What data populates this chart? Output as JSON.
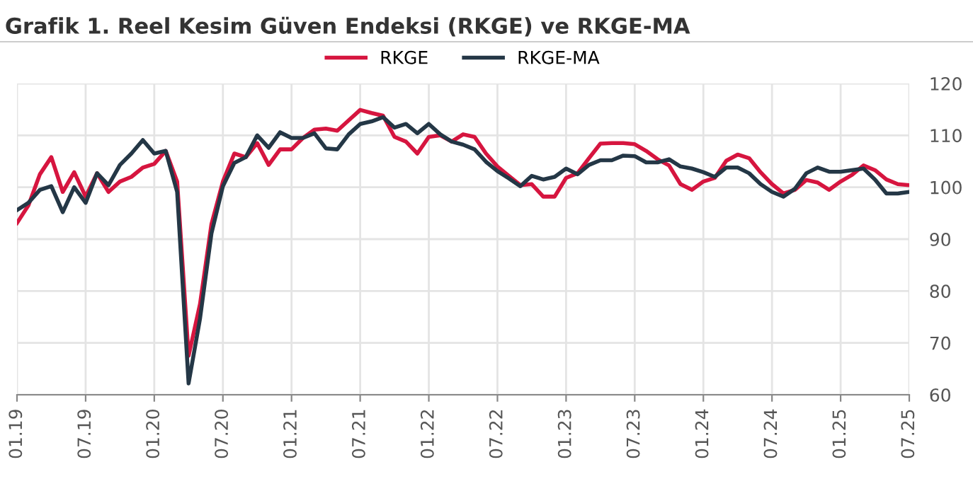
{
  "chart_data": {
    "type": "line",
    "title": "Grafik 1. Reel Kesim Güven Endeksi (RKGE) ve RKGE-MA",
    "categories": [
      "01.19",
      null,
      null,
      null,
      null,
      null,
      "07.19",
      null,
      null,
      null,
      null,
      null,
      "01.20",
      null,
      null,
      null,
      null,
      null,
      "07.20",
      null,
      null,
      null,
      null,
      null,
      "01.21",
      null,
      null,
      null,
      null,
      null,
      "07.21",
      null,
      null,
      null,
      null,
      null,
      "01.22",
      null,
      null,
      null,
      null,
      null,
      "07.22",
      null,
      null,
      null,
      null,
      null,
      "01.23",
      null,
      null,
      null,
      null,
      null,
      "07.23",
      null,
      null,
      null,
      null,
      null,
      "01.24",
      null,
      null,
      null,
      null,
      null,
      "07.24",
      null,
      null,
      null,
      null,
      null,
      "01.25",
      null,
      null,
      null,
      null,
      null,
      "07.25"
    ],
    "series": [
      {
        "name": "RKGE",
        "color": "#d6153f",
        "values": [
          93.1,
          96.5,
          102.5,
          105.8,
          99.1,
          102.9,
          98.2,
          102.7,
          99.1,
          101.1,
          102,
          103.8,
          104.5,
          107,
          101.1,
          67.5,
          77.5,
          92.9,
          101.1,
          106.5,
          105.8,
          108.5,
          104.3,
          107.3,
          107.3,
          109.5,
          111.1,
          111.3,
          110.9,
          112.9,
          114.9,
          114.3,
          113.8,
          109.7,
          108.8,
          106.5,
          109.7,
          110,
          108.8,
          110.2,
          109.7,
          106.5,
          104,
          102.2,
          100.4,
          100.6,
          98.2,
          98.2,
          101.8,
          102.7,
          105.6,
          108.4,
          108.5,
          108.5,
          108.3,
          107,
          105.4,
          104.2,
          100.6,
          99.5,
          101.1,
          101.8,
          105.1,
          106.3,
          105.6,
          102.9,
          100.6,
          98.8,
          99.5,
          101.4,
          100.9,
          99.5,
          101.1,
          102.4,
          104.2,
          103.3,
          101.5,
          100.6,
          100.4
        ]
      },
      {
        "name": "RKGE-MA",
        "color": "#243746",
        "values": [
          95.6,
          97,
          99.5,
          100.2,
          95.2,
          100,
          97,
          102.7,
          100.4,
          104.3,
          106.5,
          109.1,
          106.5,
          107,
          99.1,
          62.2,
          74.7,
          91.1,
          100.2,
          104.7,
          105.8,
          110,
          107.6,
          110.6,
          109.5,
          109.5,
          110.4,
          107.5,
          107.3,
          110.2,
          112.2,
          112.7,
          113.5,
          111.5,
          112.2,
          110.4,
          112.2,
          110.2,
          108.8,
          108.2,
          107.3,
          104.9,
          103.1,
          101.7,
          100.2,
          102.2,
          101.5,
          102,
          103.6,
          102.5,
          104.3,
          105.2,
          105.2,
          106.1,
          106,
          104.8,
          104.8,
          105.4,
          104,
          103.6,
          102.9,
          102,
          103.8,
          103.8,
          102.7,
          100.6,
          99.1,
          98.2,
          99.7,
          102.7,
          103.8,
          103,
          103,
          103.3,
          103.6,
          101.5,
          98.8,
          98.8,
          99.1
        ]
      }
    ],
    "ylim": [
      60,
      120
    ],
    "yticks": [
      60,
      70,
      80,
      90,
      100,
      110,
      120
    ],
    "grid": true,
    "legend": "top",
    "line_style": "solid"
  }
}
